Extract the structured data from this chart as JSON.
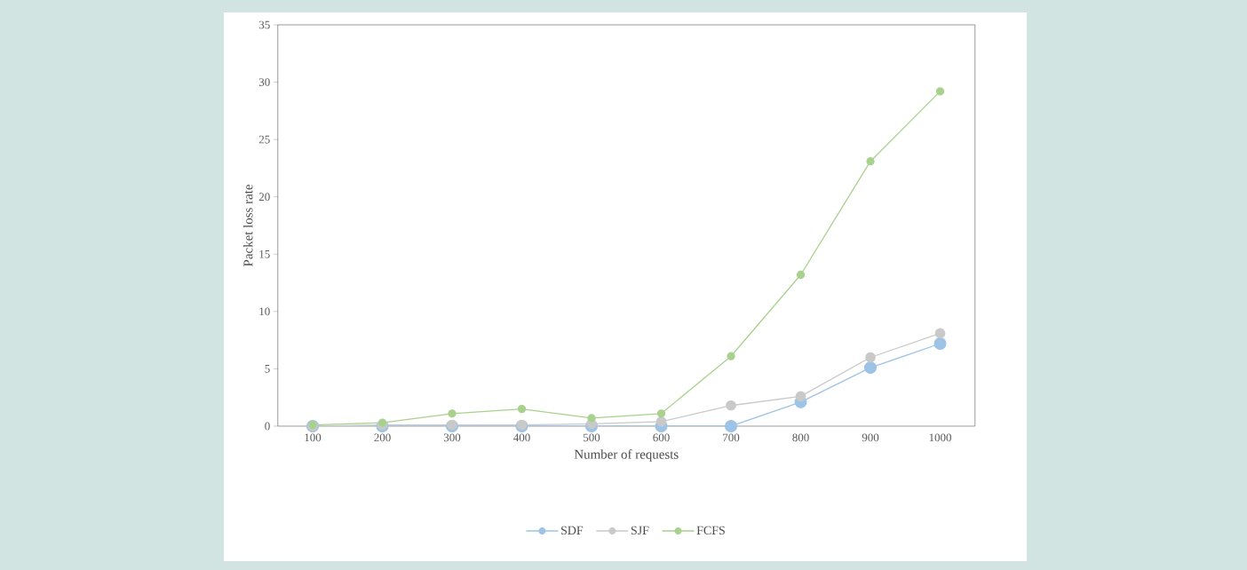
{
  "chart_data": {
    "type": "line",
    "xlabel": "Number of requests",
    "ylabel": "Packet loss rate",
    "categories": [
      "100",
      "200",
      "300",
      "400",
      "500",
      "600",
      "700",
      "800",
      "900",
      "1000"
    ],
    "series": [
      {
        "name": "SDF",
        "color": "#9dc3e6",
        "values": [
          0,
          0,
          0,
          0,
          0,
          0,
          0,
          2.1,
          5.1,
          7.2
        ]
      },
      {
        "name": "SJF",
        "color": "#c9c9c9",
        "values": [
          0,
          0.1,
          0.1,
          0.1,
          0.2,
          0.4,
          1.8,
          2.6,
          6.0,
          8.1
        ]
      },
      {
        "name": "FCFS",
        "color": "#a9d18e",
        "values": [
          0.1,
          0.3,
          1.1,
          1.5,
          0.7,
          1.1,
          6.1,
          13.2,
          23.1,
          29.2
        ]
      }
    ],
    "ylim": [
      0,
      35
    ],
    "yticks": [
      0,
      5,
      10,
      15,
      20,
      25,
      30,
      35
    ],
    "grid": false,
    "legend": "bottom",
    "marker": "circle",
    "line_style": "solid"
  }
}
